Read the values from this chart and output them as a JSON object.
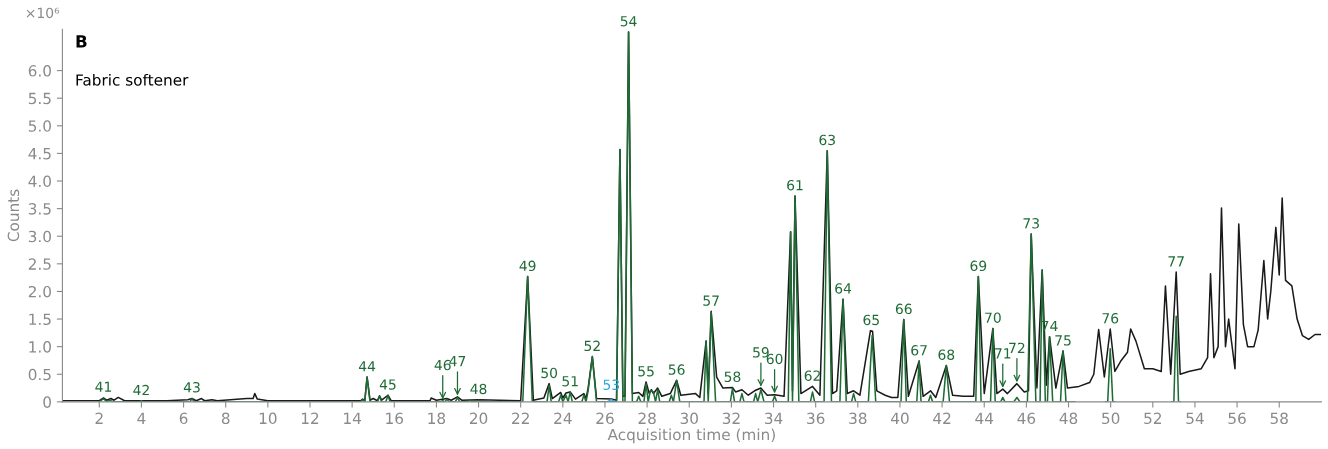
{
  "chart_data": {
    "type": "line",
    "title": "B",
    "subtitle": "Fabric softener",
    "xlabel": "Acquisition time (min)",
    "ylabel": "Counts",
    "xlim": [
      0.25,
      60
    ],
    "xticks": [
      2,
      4,
      6,
      8,
      10,
      12,
      14,
      16,
      18,
      20,
      22,
      24,
      26,
      28,
      30,
      32,
      34,
      36,
      38,
      40,
      42,
      44,
      46,
      48,
      50,
      52,
      54,
      56,
      58
    ],
    "ylim": [
      0,
      6.75
    ],
    "yticks": [
      0,
      0.5,
      {
        "value": 1,
        "label": "1.0"
      },
      1.5,
      {
        "value": 2,
        "label": "2.0"
      },
      2.5,
      {
        "value": 3,
        "label": "3.0"
      },
      3.5,
      {
        "value": 4,
        "label": "4.0"
      },
      4.5,
      {
        "value": 5,
        "label": "5.0"
      },
      5.5,
      {
        "value": 6,
        "label": "6.0"
      }
    ],
    "grid": false,
    "legend": false,
    "marker": "none",
    "line_style": "solid",
    "series": [
      {
        "color": "#1a1a1a",
        "x": [
          0.3,
          2.0,
          2.2,
          2.35,
          2.55,
          2.7,
          2.9,
          3.2,
          5.2,
          6.2,
          6.4,
          6.6,
          6.85,
          7.0,
          7.35,
          7.6,
          9.0,
          9.3,
          9.38,
          9.5,
          10.0,
          14.4,
          14.5,
          14.6,
          14.71,
          14.85,
          15.0,
          15.2,
          15.3,
          15.4,
          15.7,
          15.85,
          17.7,
          17.75,
          18.0,
          18.5,
          18.7,
          19.0,
          19.2,
          20.0,
          22.0,
          22.33,
          22.6,
          23.1,
          23.35,
          23.5,
          23.9,
          24.0,
          24.15,
          24.35,
          24.6,
          25.0,
          25.1,
          25.2,
          25.4,
          25.6,
          26.3,
          26.55,
          26.71,
          26.85,
          26.95,
          27.12,
          27.3,
          27.6,
          27.8,
          27.95,
          28.1,
          28.2,
          28.3,
          28.5,
          28.7,
          29.1,
          29.4,
          29.6,
          30.3,
          30.5,
          30.8,
          30.9,
          31.04,
          31.3,
          31.6,
          32.05,
          32.2,
          32.5,
          32.8,
          33.1,
          33.4,
          33.7,
          34.05,
          34.5,
          34.81,
          34.9,
          35.02,
          35.3,
          35.85,
          36.2,
          36.55,
          36.8,
          37.0,
          37.3,
          37.5,
          37.8,
          38.1,
          38.6,
          38.7,
          38.9,
          39.3,
          39.6,
          39.9,
          40.18,
          40.4,
          40.91,
          41.1,
          41.45,
          41.7,
          42.2,
          42.5,
          43.0,
          43.5,
          43.72,
          44.0,
          44.41,
          44.6,
          44.88,
          45.1,
          45.55,
          45.9,
          46.1,
          46.23,
          46.5,
          46.75,
          46.95,
          47.1,
          47.4,
          47.74,
          47.95,
          48.5,
          49.0,
          49.2,
          49.43,
          49.7,
          49.98,
          50.2,
          50.5,
          50.8,
          50.95,
          51.2,
          51.6,
          52.0,
          52.4,
          52.6,
          52.85,
          53.11,
          53.3,
          53.7,
          54.3,
          54.6,
          54.74,
          54.9,
          55.1,
          55.26,
          55.45,
          55.6,
          55.9,
          56.08,
          56.3,
          56.5,
          56.8,
          57.0,
          57.27,
          57.45,
          57.6,
          57.84,
          58.0,
          58.14,
          58.3,
          58.6,
          58.85,
          59.1,
          59.4,
          59.7,
          59.95
        ],
        "values": [
          0.02,
          0.02,
          0.07,
          0.03,
          0.06,
          0.03,
          0.08,
          0.02,
          0.02,
          0.04,
          0.06,
          0.02,
          0.06,
          0.02,
          0.04,
          0.02,
          0.06,
          0.06,
          0.15,
          0.05,
          0.02,
          0.02,
          0.05,
          0.02,
          0.45,
          0.03,
          0.06,
          0.02,
          0.11,
          0.03,
          0.12,
          0.02,
          0.02,
          0.07,
          0.03,
          0.06,
          0.03,
          0.09,
          0.03,
          0.04,
          0.02,
          2.27,
          0.03,
          0.07,
          0.33,
          0.06,
          0.17,
          0.07,
          0.16,
          0.18,
          0.05,
          0.15,
          0.06,
          0.25,
          0.82,
          0.06,
          0.05,
          0.03,
          4.57,
          0.1,
          0.1,
          6.7,
          0.15,
          0.17,
          0.1,
          0.36,
          0.15,
          0.22,
          0.15,
          0.25,
          0.1,
          0.15,
          0.39,
          0.12,
          0.15,
          0.08,
          1.1,
          0.15,
          1.64,
          0.45,
          0.25,
          0.26,
          0.18,
          0.22,
          0.12,
          0.2,
          0.25,
          0.12,
          0.13,
          0.1,
          3.08,
          0.2,
          3.73,
          0.15,
          0.28,
          0.12,
          4.55,
          0.15,
          0.2,
          1.86,
          0.15,
          0.2,
          0.12,
          1.29,
          1.28,
          0.2,
          0.12,
          0.08,
          0.08,
          1.49,
          0.1,
          0.74,
          0.1,
          0.2,
          0.08,
          0.66,
          0.12,
          0.1,
          0.1,
          2.27,
          0.15,
          1.33,
          0.15,
          0.23,
          0.15,
          0.33,
          0.18,
          0.2,
          3.04,
          0.25,
          2.39,
          0.3,
          1.18,
          0.25,
          0.92,
          0.25,
          0.28,
          0.35,
          0.5,
          1.31,
          0.45,
          1.32,
          0.55,
          0.75,
          0.9,
          1.32,
          1.1,
          0.6,
          0.6,
          0.55,
          2.1,
          0.5,
          2.35,
          0.5,
          0.55,
          0.6,
          0.8,
          2.32,
          0.8,
          1.0,
          3.51,
          1.0,
          1.5,
          0.6,
          3.22,
          1.4,
          1.0,
          1.0,
          1.3,
          2.56,
          1.5,
          2.0,
          3.16,
          2.3,
          3.69,
          2.2,
          2.1,
          1.5,
          1.2,
          1.13,
          1.22,
          1.22
        ]
      },
      {
        "color": "#1e6b35",
        "x": [
          2.0,
          2.2,
          2.35,
          2.5,
          2.65,
          3.9,
          4.0,
          4.1,
          6.3,
          6.4,
          6.5,
          14.4,
          14.5,
          14.6,
          14.71,
          14.85,
          15.2,
          15.3,
          15.4,
          15.6,
          15.7,
          15.8,
          18.2,
          18.3,
          18.4,
          18.5,
          18.6,
          18.9,
          19.0,
          19.1,
          19.5,
          19.6,
          19.7,
          19.9,
          20.0,
          20.1,
          22.1,
          22.33,
          22.55,
          23.25,
          23.35,
          23.45,
          23.8,
          23.9,
          24.0,
          24.15,
          24.25,
          24.35,
          24.45,
          24.9,
          25.0,
          25.1,
          25.2,
          25.4,
          25.6,
          26.55,
          26.71,
          26.85,
          26.95,
          27.12,
          27.3,
          27.5,
          27.6,
          27.7,
          27.85,
          27.95,
          28.05,
          28.15,
          28.3,
          28.4,
          28.5,
          28.6,
          29.05,
          29.15,
          29.25,
          29.4,
          29.55,
          30.7,
          30.8,
          30.9,
          31.04,
          31.25,
          31.95,
          32.05,
          32.15,
          32.4,
          32.5,
          32.6,
          33.05,
          33.15,
          33.25,
          33.4,
          33.55,
          33.95,
          34.05,
          34.15,
          34.7,
          34.81,
          34.9,
          35.02,
          35.2,
          35.75,
          35.85,
          35.95,
          36.4,
          36.55,
          36.75,
          37.15,
          37.3,
          37.45,
          37.7,
          37.8,
          37.9,
          38.5,
          38.68,
          38.85,
          40.05,
          40.18,
          40.3,
          40.8,
          40.91,
          41.0,
          41.35,
          41.45,
          41.55,
          42.05,
          42.2,
          42.35,
          43.6,
          43.72,
          43.85,
          44.3,
          44.41,
          44.52,
          44.78,
          44.88,
          44.98,
          45.4,
          45.55,
          45.7,
          46.05,
          46.23,
          46.45,
          46.65,
          46.75,
          46.9,
          47.0,
          47.1,
          47.25,
          47.62,
          47.74,
          47.88,
          48.3,
          49.0,
          49.75,
          49.86,
          49.98,
          50.1,
          50.2,
          51.5,
          52.9,
          53.0,
          53.11,
          53.22,
          53.3
        ],
        "values": [
          0,
          0.06,
          0,
          0.03,
          0,
          0,
          0.02,
          0,
          0,
          0.06,
          0,
          0,
          0.04,
          0,
          0.45,
          0,
          0,
          0.1,
          0,
          0,
          0.12,
          0,
          0,
          0.02,
          0,
          0.05,
          0,
          0,
          0.08,
          0,
          0,
          0.03,
          0,
          0,
          0.03,
          0,
          0,
          2.27,
          0,
          0,
          0.3,
          0,
          0,
          0.12,
          0,
          0.12,
          0,
          0.18,
          0,
          0,
          0.12,
          0,
          0.2,
          0.82,
          0,
          0,
          4.57,
          0,
          0,
          6.7,
          0,
          0,
          0.1,
          0,
          0,
          0.33,
          0,
          0.2,
          0.18,
          0,
          0.22,
          0,
          0,
          0.12,
          0,
          0.39,
          0,
          0,
          1.1,
          0,
          1.62,
          0,
          0,
          0.24,
          0,
          0,
          0.15,
          0,
          0,
          0.15,
          0,
          0.22,
          0,
          0,
          0.1,
          0,
          0,
          3.08,
          0,
          3.73,
          0,
          0,
          0.18,
          0,
          0,
          4.55,
          0,
          0,
          1.86,
          0,
          0,
          0.15,
          0,
          0,
          1.2,
          0,
          0,
          1.49,
          0,
          0,
          0.74,
          0,
          0,
          0.12,
          0,
          0,
          0.66,
          0,
          0,
          2.27,
          0,
          0,
          1.33,
          0,
          0,
          0.08,
          0,
          0,
          0.08,
          0,
          0,
          3.04,
          0,
          0,
          2.39,
          0,
          0,
          1.18,
          0,
          0,
          0.92,
          0,
          0,
          null,
          0,
          0,
          0.96,
          0,
          0,
          null,
          0,
          0,
          1.55,
          0,
          0
        ]
      },
      {
        "name": "53",
        "color": "#29a8e0",
        "x": [
          26.1,
          26.3,
          26.5
        ],
        "values": [
          0,
          0.04,
          0
        ]
      }
    ],
    "annotations": [
      "×10⁶",
      {
        "text": "41",
        "x": 2.2,
        "y": 0.08
      },
      {
        "text": "42",
        "x": 4.0,
        "y": 0.02
      },
      {
        "text": "43",
        "x": 6.4,
        "y": 0.07
      },
      {
        "text": "44",
        "x": 14.71,
        "y": 0.45
      },
      {
        "text": "45",
        "x": 15.7,
        "y": 0.12
      },
      {
        "text": "46",
        "x": 18.3,
        "y": 0.02
      },
      {
        "text": "47",
        "x": 19.0,
        "y": 0.09
      },
      {
        "text": "48",
        "x": 20.0,
        "y": 0.04
      },
      {
        "text": "49",
        "x": 22.33,
        "y": 2.27
      },
      {
        "text": "50",
        "x": 23.35,
        "y": 0.33
      },
      {
        "text": "51",
        "x": 24.35,
        "y": 0.18
      },
      {
        "text": "52",
        "x": 25.4,
        "y": 0.82
      },
      {
        "text": "54",
        "x": 27.12,
        "y": 6.7
      },
      {
        "text": "55",
        "x": 27.95,
        "y": 0.36
      },
      {
        "text": "56",
        "x": 29.4,
        "y": 0.39
      },
      {
        "text": "57",
        "x": 31.04,
        "y": 1.64
      },
      {
        "text": "58",
        "x": 32.05,
        "y": 0.26
      },
      {
        "text": "59",
        "x": 33.4,
        "y": 0.25
      },
      {
        "text": "60",
        "x": 34.05,
        "y": 0.13
      },
      {
        "text": "61",
        "x": 35.02,
        "y": 3.73
      },
      {
        "text": "62",
        "x": 35.85,
        "y": 0.28
      },
      {
        "text": "63",
        "x": 36.55,
        "y": 4.55
      },
      {
        "text": "64",
        "x": 37.3,
        "y": 1.86
      },
      {
        "text": "65",
        "x": 38.64,
        "y": 1.29
      },
      {
        "text": "66",
        "x": 40.18,
        "y": 1.49
      },
      {
        "text": "67",
        "x": 40.91,
        "y": 0.74
      },
      {
        "text": "68",
        "x": 42.2,
        "y": 0.66
      },
      {
        "text": "69",
        "x": 43.72,
        "y": 2.27
      },
      {
        "text": "70",
        "x": 44.41,
        "y": 1.33
      },
      {
        "text": "71",
        "x": 44.88,
        "y": 0.23
      },
      {
        "text": "72",
        "x": 45.55,
        "y": 0.33
      },
      {
        "text": "73",
        "x": 46.23,
        "y": 3.04
      },
      {
        "text": "74",
        "x": 47.1,
        "y": 1.18
      },
      {
        "text": "75",
        "x": 47.74,
        "y": 0.92
      },
      {
        "text": "76",
        "x": 49.98,
        "y": 1.32
      },
      {
        "text": "77",
        "x": 53.11,
        "y": 2.35
      }
    ]
  }
}
